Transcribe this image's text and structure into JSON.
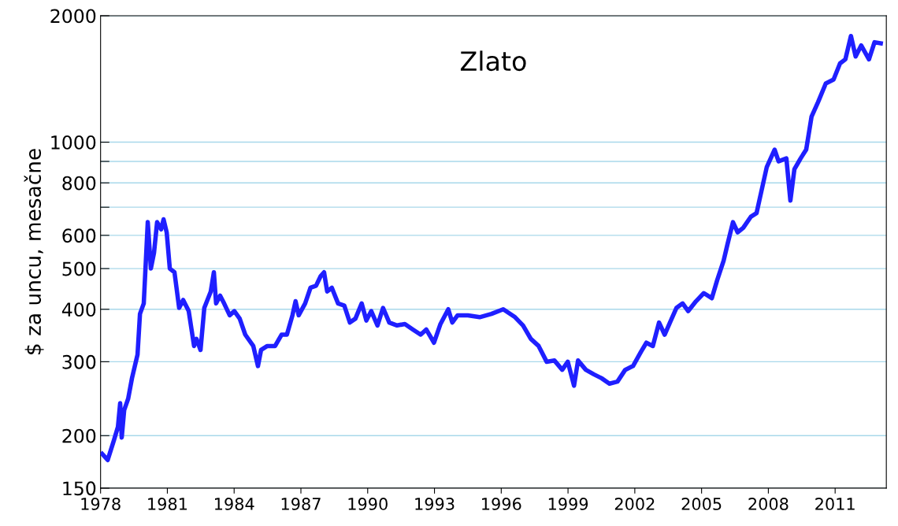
{
  "chart_data": {
    "type": "line",
    "title": "Zlato",
    "ylabel": "$ za uncu, mesačne",
    "log": true,
    "grid": "y",
    "legend": false,
    "marker": "none",
    "line_style": "solid",
    "xlim": [
      1978,
      2013.3
    ],
    "xticks": [
      1978,
      1981,
      1984,
      1987,
      1990,
      1993,
      1996,
      1999,
      2002,
      2005,
      2008,
      2011
    ],
    "ylim": [
      150,
      2000
    ],
    "yticks": [
      150,
      200,
      300,
      400,
      500,
      600,
      {
        "value": 700,
        "label": null
      },
      800,
      {
        "value": 900,
        "label": null
      },
      1000,
      2000
    ],
    "series": [
      {
        "color": "#1f1fff",
        "x": [
          1978.07,
          1978.32,
          1978.6,
          1978.78,
          1978.88,
          1978.95,
          1979.06,
          1979.24,
          1979.41,
          1979.66,
          1979.77,
          1979.94,
          1980.12,
          1980.26,
          1980.4,
          1980.54,
          1980.72,
          1980.83,
          1980.97,
          1981.11,
          1981.32,
          1981.53,
          1981.71,
          1981.96,
          1982.2,
          1982.31,
          1982.49,
          1982.66,
          1982.95,
          1983.09,
          1983.19,
          1983.37,
          1983.55,
          1983.8,
          1984.01,
          1984.25,
          1984.5,
          1984.86,
          1985.07,
          1985.21,
          1985.49,
          1985.84,
          1986.13,
          1986.37,
          1986.62,
          1986.76,
          1986.9,
          1987.19,
          1987.43,
          1987.68,
          1987.89,
          1988.04,
          1988.18,
          1988.39,
          1988.67,
          1988.95,
          1989.2,
          1989.45,
          1989.73,
          1989.94,
          1990.16,
          1990.44,
          1990.69,
          1990.97,
          1991.32,
          1991.67,
          1992.03,
          1992.38,
          1992.63,
          1992.98,
          1993.27,
          1993.62,
          1993.8,
          1994.04,
          1994.5,
          1995.03,
          1995.56,
          1996.09,
          1996.62,
          1996.98,
          1997.33,
          1997.68,
          1998.04,
          1998.39,
          1998.74,
          1998.99,
          1999.27,
          1999.45,
          1999.8,
          2000.16,
          2000.51,
          2000.86,
          2001.22,
          2001.57,
          2001.92,
          2002.28,
          2002.52,
          2002.81,
          2003.09,
          2003.34,
          2003.58,
          2003.87,
          2004.15,
          2004.4,
          2004.75,
          2005.1,
          2005.46,
          2005.7,
          2005.99,
          2006.16,
          2006.41,
          2006.62,
          2006.87,
          2007.22,
          2007.47,
          2007.93,
          2008.28,
          2008.46,
          2008.81,
          2008.99,
          2009.17,
          2009.45,
          2009.7,
          2009.94,
          2010.23,
          2010.58,
          2010.93,
          2011.22,
          2011.46,
          2011.71,
          2011.92,
          2012.17,
          2012.52,
          2012.77,
          2013.05
        ],
        "values": [
          181,
          175,
          195,
          210,
          239,
          198,
          230,
          245,
          274,
          312,
          390,
          413,
          645,
          500,
          545,
          645,
          620,
          655,
          610,
          500,
          490,
          403,
          421,
          396,
          327,
          340,
          320,
          403,
          441,
          490,
          413,
          431,
          413,
          387,
          396,
          380,
          348,
          327,
          293,
          320,
          327,
          327,
          348,
          348,
          387,
          418,
          387,
          413,
          450,
          455,
          480,
          490,
          441,
          450,
          413,
          408,
          372,
          380,
          413,
          376,
          396,
          366,
          403,
          372,
          366,
          369,
          358,
          348,
          358,
          333,
          369,
          400,
          372,
          387,
          387,
          383,
          390,
          400,
          383,
          366,
          340,
          327,
          300,
          302,
          287,
          300,
          263,
          302,
          287,
          280,
          274,
          266,
          269,
          287,
          293,
          317,
          333,
          327,
          372,
          348,
          372,
          403,
          413,
          396,
          418,
          437,
          425,
          469,
          522,
          570,
          645,
          610,
          625,
          665,
          678,
          873,
          960,
          900,
          915,
          726,
          862,
          915,
          960,
          1150,
          1245,
          1380,
          1410,
          1540,
          1575,
          1790,
          1600,
          1700,
          1575,
          1730,
          1720
        ]
      }
    ]
  }
}
